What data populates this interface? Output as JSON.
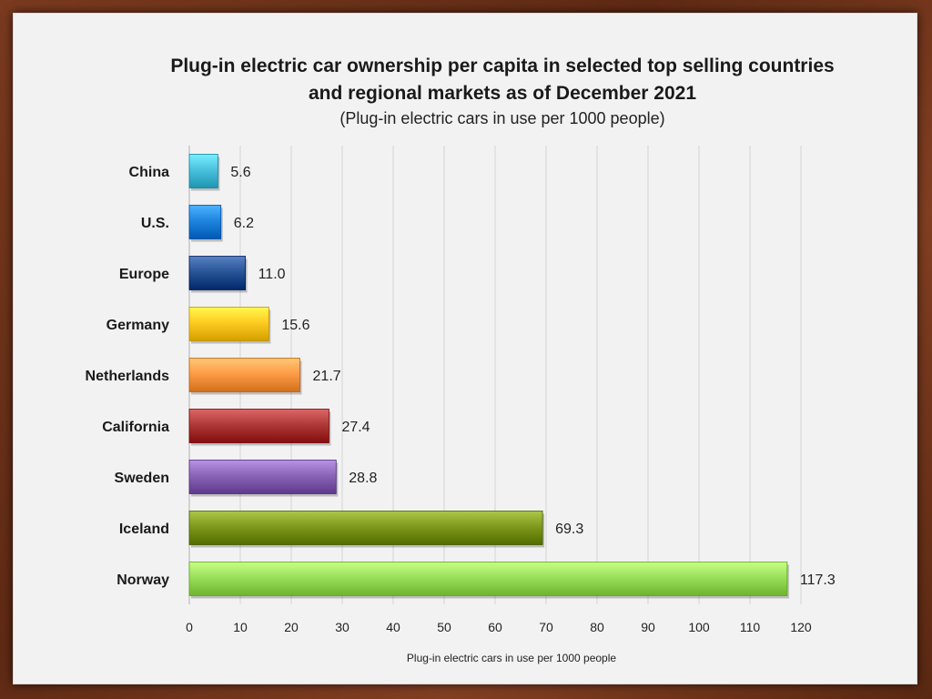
{
  "chart_data": {
    "type": "bar",
    "orientation": "horizontal",
    "title_line1": "Plug-in electric car ownership per capita in selected top selling countries",
    "title_line2": "and regional markets as of December 2021",
    "subtitle": "(Plug-in electric cars in use per 1000 people)",
    "xlabel": "Plug-in electric cars in use per 1000  people",
    "ylabel": "",
    "categories": [
      "China",
      "U.S.",
      "Europe",
      "Germany",
      "Netherlands",
      "California",
      "Sweden",
      "Iceland",
      "Norway"
    ],
    "values": [
      5.6,
      6.2,
      11.0,
      15.6,
      21.7,
      27.4,
      28.8,
      69.3,
      117.3
    ],
    "value_labels": [
      "5.6",
      "6.2",
      "11.0",
      "15.6",
      "21.7",
      "27.4",
      "28.8",
      "69.3",
      "117.3"
    ],
    "colors": [
      "#4bc2de",
      "#1f86e0",
      "#2a5597",
      "#ffcc22",
      "#ff9c48",
      "#b03a3a",
      "#8b66b8",
      "#7f9a1c",
      "#9be05a"
    ],
    "xlim": [
      0,
      120
    ],
    "ticks": [
      0,
      10,
      20,
      30,
      40,
      50,
      60,
      70,
      80,
      90,
      100,
      110,
      120
    ],
    "grid": true,
    "legend": "none"
  }
}
